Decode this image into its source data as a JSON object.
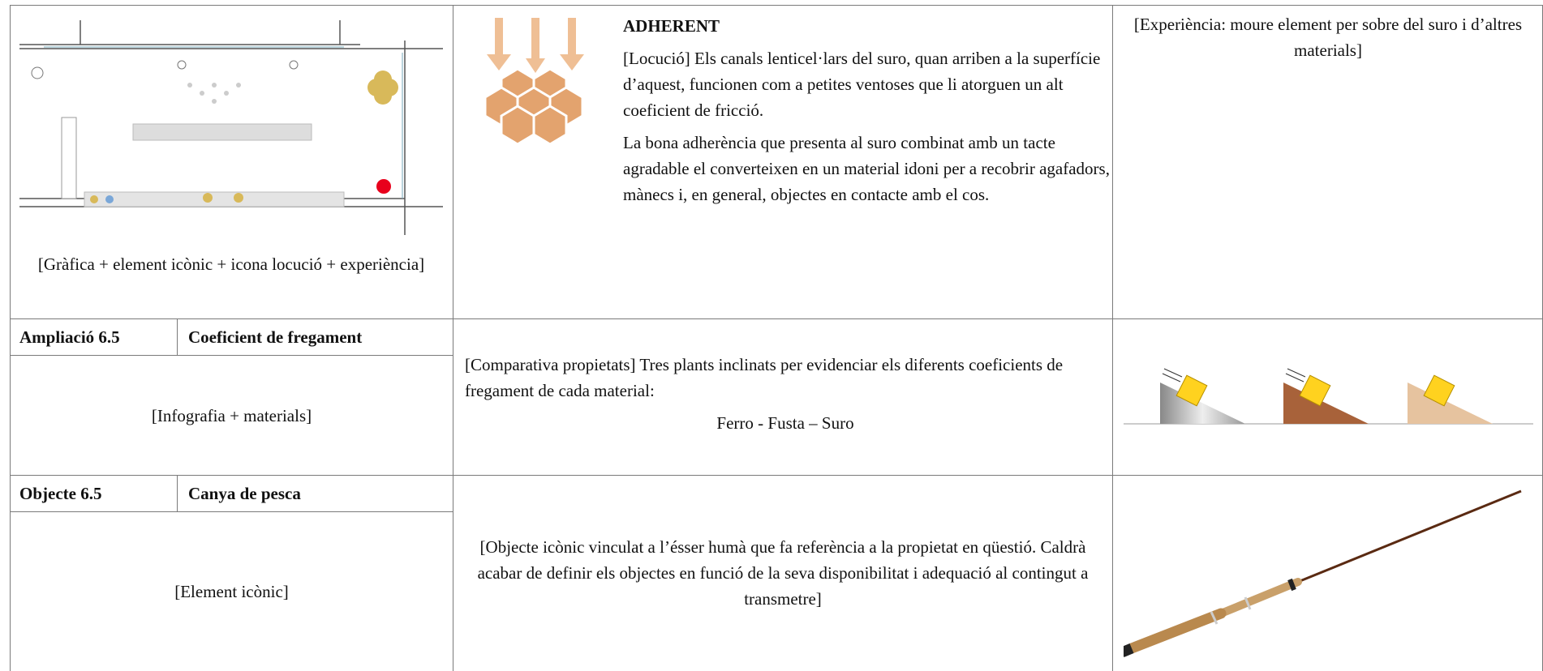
{
  "rows": [
    {
      "caption": "[Gràfica + element icònic + icona locució + experiència]",
      "heading": "ADHERENT",
      "paragraphs": [
        "[Locució] Els canals lenticel·lars del suro, quan arriben a la superfície d’aquest, funcionen com a petites ventoses que li atorguen un alt coeficient de fricció.",
        "La bona adherència que presenta al suro combinat amb un tacte agradable el converteixen en un material idoni per a recobrir agafadors, mànecs i, en general, objectes en contacte amb el cos."
      ],
      "experience": "[Experiència: moure element per sobre del suro i d’altres materials]"
    },
    {
      "code": "Ampliació 6.5",
      "title": "Coeficient de fregament",
      "caption": "[Infografia + materials]",
      "paragraphs": [
        "[Comparativa propietats] Tres plants inclinats per evidenciar els diferents coeficients de fregament de cada material:",
        "Ferro - Fusta – Suro"
      ]
    },
    {
      "code": "Objecte 6.5",
      "title": "Canya de pesca",
      "caption": "[Element icònic]",
      "paragraphs": [
        "[Objecte icònic vinculat a l’ésser humà que fa referència a la propietat en qüestió. Caldrà acabar de definir els objectes en funció de la seva disponibilitat i adequació al contingut a transmetre]"
      ]
    }
  ]
}
